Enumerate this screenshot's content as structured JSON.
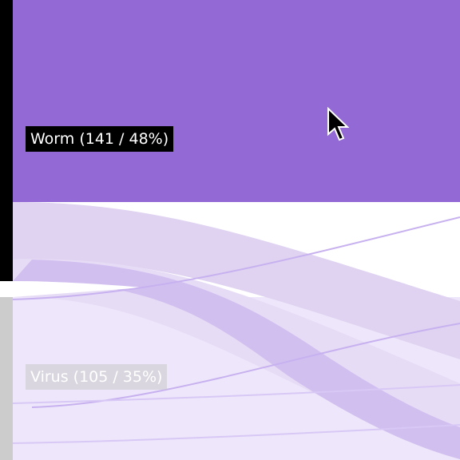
{
  "chart_data": {
    "type": "sankey",
    "nodes": [
      {
        "id": "worm",
        "label": "Worm (141 / 48%)",
        "name": "Worm",
        "count": 141,
        "percent": 48,
        "highlighted": true
      },
      {
        "id": "virus",
        "label": "Virus (105 / 35%)",
        "name": "Virus",
        "count": 105,
        "percent": 35,
        "highlighted": false
      }
    ],
    "colors": {
      "highlight": "#9369d6",
      "link_worm": "#dfd3f1",
      "link_virus": "#eee7fb",
      "link_dark": "#d1bff0",
      "link_line": "#c7b1ef",
      "bar_active": "#000000",
      "bar_inactive": "#cccccc"
    }
  },
  "cursor": {
    "icon": "arrow-cursor-icon"
  }
}
